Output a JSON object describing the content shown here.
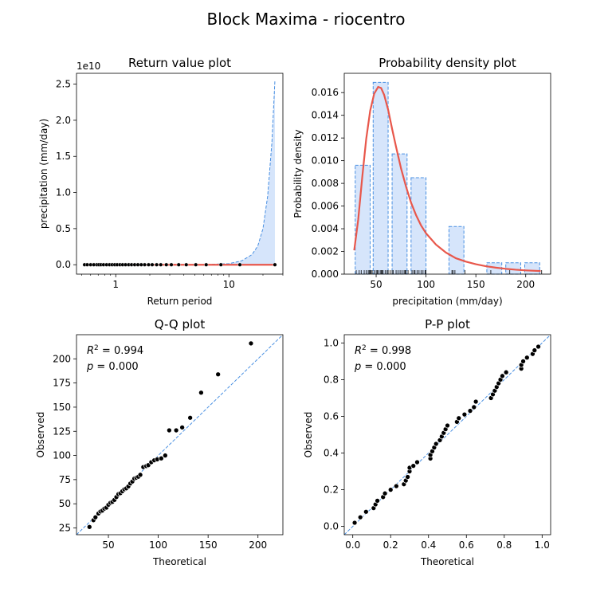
{
  "figure": {
    "title": "Block Maxima - riocentro"
  },
  "colors": {
    "fit_line": "#e8574b",
    "dashed": "#4a90e2",
    "fill": "#d6e5fb",
    "point": "#000000"
  },
  "chart_data": [
    {
      "id": "return",
      "type": "line",
      "title": "Return value plot",
      "xlabel": "Return period",
      "ylabel": "precipitation (mm/day)",
      "x_scale": "log",
      "xlim": [
        0.45,
        30
      ],
      "ylim": [
        -1300000000.0,
        26500000000.0
      ],
      "offset_label": "1e10",
      "x_ticks": [
        {
          "v": 1,
          "label": "1"
        },
        {
          "v": 10,
          "label": "10"
        }
      ],
      "y_ticks": [
        {
          "v": 0,
          "label": "0.0"
        },
        {
          "v": 5000000000.0,
          "label": "0.5"
        },
        {
          "v": 10000000000.0,
          "label": "1.0"
        },
        {
          "v": 15000000000.0,
          "label": "1.5"
        },
        {
          "v": 20000000000.0,
          "label": "2.0"
        },
        {
          "v": 25000000000.0,
          "label": "2.5"
        }
      ],
      "upper_ci_curve": {
        "x": [
          2,
          6,
          10,
          13,
          16,
          18,
          20,
          22,
          24,
          25.5
        ],
        "y": [
          0,
          20000000.0,
          150000000.0,
          550000000.0,
          1400000000.0,
          2600000000.0,
          5000000000.0,
          9500000000.0,
          17000000000.0,
          25500000000.0
        ]
      },
      "return_period_points": [
        0.53,
        0.56,
        0.6,
        0.64,
        0.68,
        0.71,
        0.74,
        0.78,
        0.83,
        0.88,
        0.93,
        0.98,
        1.03,
        1.09,
        1.15,
        1.22,
        1.3,
        1.38,
        1.47,
        1.57,
        1.68,
        1.8,
        1.95,
        2.1,
        2.3,
        2.5,
        2.8,
        3.1,
        3.6,
        4.2,
        5.1,
        6.3,
        8.5,
        12.5,
        25.5
      ],
      "fit_line": {
        "x": [
          0.53,
          25.5
        ],
        "y": [
          0,
          0
        ]
      }
    },
    {
      "id": "density",
      "type": "bar",
      "title": "Probability density plot",
      "xlabel": "precipitation (mm/day)",
      "ylabel": "Probability density",
      "xlim": [
        18,
        225
      ],
      "ylim": [
        0,
        0.0177
      ],
      "x_ticks": [
        {
          "v": 50,
          "label": "50"
        },
        {
          "v": 100,
          "label": "100"
        },
        {
          "v": 150,
          "label": "150"
        },
        {
          "v": 200,
          "label": "200"
        }
      ],
      "y_ticks": [
        {
          "v": 0,
          "label": "0.000"
        },
        {
          "v": 0.002,
          "label": "0.002"
        },
        {
          "v": 0.004,
          "label": "0.004"
        },
        {
          "v": 0.006,
          "label": "0.006"
        },
        {
          "v": 0.008,
          "label": "0.008"
        },
        {
          "v": 0.01,
          "label": "0.010"
        },
        {
          "v": 0.012,
          "label": "0.012"
        },
        {
          "v": 0.014,
          "label": "0.014"
        },
        {
          "v": 0.016,
          "label": "0.016"
        }
      ],
      "bins": [
        {
          "x0": 29,
          "x1": 44,
          "density": 0.0096
        },
        {
          "x0": 47,
          "x1": 62,
          "density": 0.0169
        },
        {
          "x0": 66,
          "x1": 81,
          "density": 0.0106
        },
        {
          "x0": 85,
          "x1": 100,
          "density": 0.0085
        },
        {
          "x0": 123,
          "x1": 138,
          "density": 0.0042
        },
        {
          "x0": 161,
          "x1": 176,
          "density": 0.001
        },
        {
          "x0": 180,
          "x1": 195,
          "density": 0.001
        },
        {
          "x0": 199,
          "x1": 214,
          "density": 0.001
        }
      ],
      "pdf_curve": {
        "x": [
          28,
          32,
          36,
          40,
          44,
          48,
          52,
          55,
          58,
          62,
          66,
          70,
          75,
          80,
          85,
          90,
          95,
          100,
          110,
          120,
          130,
          140,
          150,
          160,
          170,
          180,
          190,
          200,
          215
        ],
        "y": [
          0.0021,
          0.0048,
          0.0085,
          0.0119,
          0.0144,
          0.0159,
          0.0165,
          0.0164,
          0.0158,
          0.0145,
          0.0128,
          0.0112,
          0.0093,
          0.0077,
          0.0063,
          0.0052,
          0.0043,
          0.0036,
          0.0026,
          0.0019,
          0.0014,
          0.0011,
          0.00087,
          0.0007,
          0.00057,
          0.00047,
          0.00039,
          0.00033,
          0.00027
        ]
      },
      "rug": [
        30,
        33,
        35,
        38,
        40,
        42,
        43,
        44,
        45,
        46,
        48,
        50,
        51,
        52,
        54,
        55,
        56,
        57,
        59,
        61,
        62,
        64,
        66,
        67,
        70,
        72,
        74,
        76,
        78,
        79,
        80,
        82,
        86,
        88,
        89,
        91,
        93,
        95,
        97,
        99,
        100,
        126,
        127,
        129,
        139,
        165,
        184,
        216
      ]
    },
    {
      "id": "qq",
      "type": "scatter",
      "title": "Q-Q plot",
      "xlabel": "Theoretical",
      "ylabel": "Observed",
      "xlim": [
        18,
        225
      ],
      "ylim": [
        18,
        225
      ],
      "x_ticks": [
        {
          "v": 50,
          "label": "50"
        },
        {
          "v": 100,
          "label": "100"
        },
        {
          "v": 150,
          "label": "150"
        },
        {
          "v": 200,
          "label": "200"
        }
      ],
      "y_ticks": [
        {
          "v": 25,
          "label": "25"
        },
        {
          "v": 50,
          "label": "50"
        },
        {
          "v": 75,
          "label": "75"
        },
        {
          "v": 100,
          "label": "100"
        },
        {
          "v": 125,
          "label": "125"
        },
        {
          "v": 150,
          "label": "150"
        },
        {
          "v": 175,
          "label": "175"
        },
        {
          "v": 200,
          "label": "200"
        }
      ],
      "annotation": {
        "r2_value": "0.994",
        "p_value": "0.000"
      },
      "points": [
        {
          "x": 31,
          "y": 26
        },
        {
          "x": 35,
          "y": 33
        },
        {
          "x": 37,
          "y": 36
        },
        {
          "x": 40,
          "y": 40
        },
        {
          "x": 42,
          "y": 42
        },
        {
          "x": 44,
          "y": 43
        },
        {
          "x": 46,
          "y": 45
        },
        {
          "x": 48,
          "y": 46
        },
        {
          "x": 50,
          "y": 49
        },
        {
          "x": 52,
          "y": 51
        },
        {
          "x": 54,
          "y": 52
        },
        {
          "x": 56,
          "y": 54
        },
        {
          "x": 58,
          "y": 57
        },
        {
          "x": 60,
          "y": 60
        },
        {
          "x": 62,
          "y": 61
        },
        {
          "x": 64,
          "y": 63
        },
        {
          "x": 66,
          "y": 65
        },
        {
          "x": 68,
          "y": 66
        },
        {
          "x": 70,
          "y": 68
        },
        {
          "x": 72,
          "y": 71
        },
        {
          "x": 74,
          "y": 73
        },
        {
          "x": 76,
          "y": 76
        },
        {
          "x": 78,
          "y": 77
        },
        {
          "x": 80,
          "y": 78
        },
        {
          "x": 82,
          "y": 80
        },
        {
          "x": 85,
          "y": 88
        },
        {
          "x": 88,
          "y": 89
        },
        {
          "x": 90,
          "y": 90
        },
        {
          "x": 93,
          "y": 93
        },
        {
          "x": 96,
          "y": 95
        },
        {
          "x": 99,
          "y": 96
        },
        {
          "x": 103,
          "y": 97
        },
        {
          "x": 107,
          "y": 100
        },
        {
          "x": 111,
          "y": 126
        },
        {
          "x": 118,
          "y": 126
        },
        {
          "x": 124,
          "y": 129
        },
        {
          "x": 132,
          "y": 139
        },
        {
          "x": 143,
          "y": 165
        },
        {
          "x": 160,
          "y": 184
        },
        {
          "x": 193,
          "y": 216
        }
      ]
    },
    {
      "id": "pp",
      "type": "scatter",
      "title": "P-P plot",
      "xlabel": "Theoretical",
      "ylabel": "Observed",
      "xlim": [
        -0.045,
        1.045
      ],
      "ylim": [
        -0.045,
        1.045
      ],
      "x_ticks": [
        {
          "v": 0,
          "label": "0.0"
        },
        {
          "v": 0.2,
          "label": "0.2"
        },
        {
          "v": 0.4,
          "label": "0.4"
        },
        {
          "v": 0.6,
          "label": "0.6"
        },
        {
          "v": 0.8,
          "label": "0.8"
        },
        {
          "v": 1.0,
          "label": "1.0"
        }
      ],
      "y_ticks": [
        {
          "v": 0,
          "label": "0.0"
        },
        {
          "v": 0.2,
          "label": "0.2"
        },
        {
          "v": 0.4,
          "label": "0.4"
        },
        {
          "v": 0.6,
          "label": "0.6"
        },
        {
          "v": 0.8,
          "label": "0.8"
        },
        {
          "v": 1.0,
          "label": "1.0"
        }
      ],
      "annotation": {
        "r2_value": "0.998",
        "p_value": "0.000"
      },
      "points": [
        {
          "x": 0.01,
          "y": 0.02
        },
        {
          "x": 0.04,
          "y": 0.05
        },
        {
          "x": 0.07,
          "y": 0.08
        },
        {
          "x": 0.11,
          "y": 0.1
        },
        {
          "x": 0.12,
          "y": 0.12
        },
        {
          "x": 0.13,
          "y": 0.14
        },
        {
          "x": 0.16,
          "y": 0.16
        },
        {
          "x": 0.17,
          "y": 0.18
        },
        {
          "x": 0.2,
          "y": 0.2
        },
        {
          "x": 0.23,
          "y": 0.22
        },
        {
          "x": 0.27,
          "y": 0.23
        },
        {
          "x": 0.28,
          "y": 0.25
        },
        {
          "x": 0.29,
          "y": 0.27
        },
        {
          "x": 0.3,
          "y": 0.3
        },
        {
          "x": 0.3,
          "y": 0.32
        },
        {
          "x": 0.32,
          "y": 0.33
        },
        {
          "x": 0.34,
          "y": 0.35
        },
        {
          "x": 0.41,
          "y": 0.37
        },
        {
          "x": 0.41,
          "y": 0.39
        },
        {
          "x": 0.42,
          "y": 0.41
        },
        {
          "x": 0.43,
          "y": 0.43
        },
        {
          "x": 0.44,
          "y": 0.45
        },
        {
          "x": 0.46,
          "y": 0.47
        },
        {
          "x": 0.47,
          "y": 0.49
        },
        {
          "x": 0.48,
          "y": 0.51
        },
        {
          "x": 0.49,
          "y": 0.53
        },
        {
          "x": 0.5,
          "y": 0.55
        },
        {
          "x": 0.55,
          "y": 0.57
        },
        {
          "x": 0.56,
          "y": 0.59
        },
        {
          "x": 0.59,
          "y": 0.61
        },
        {
          "x": 0.62,
          "y": 0.63
        },
        {
          "x": 0.64,
          "y": 0.65
        },
        {
          "x": 0.65,
          "y": 0.68
        },
        {
          "x": 0.73,
          "y": 0.7
        },
        {
          "x": 0.74,
          "y": 0.72
        },
        {
          "x": 0.75,
          "y": 0.74
        },
        {
          "x": 0.76,
          "y": 0.76
        },
        {
          "x": 0.77,
          "y": 0.78
        },
        {
          "x": 0.78,
          "y": 0.8
        },
        {
          "x": 0.79,
          "y": 0.82
        },
        {
          "x": 0.81,
          "y": 0.84
        },
        {
          "x": 0.89,
          "y": 0.86
        },
        {
          "x": 0.89,
          "y": 0.88
        },
        {
          "x": 0.9,
          "y": 0.9
        },
        {
          "x": 0.92,
          "y": 0.92
        },
        {
          "x": 0.95,
          "y": 0.94
        },
        {
          "x": 0.96,
          "y": 0.96
        },
        {
          "x": 0.98,
          "y": 0.98
        }
      ]
    }
  ]
}
